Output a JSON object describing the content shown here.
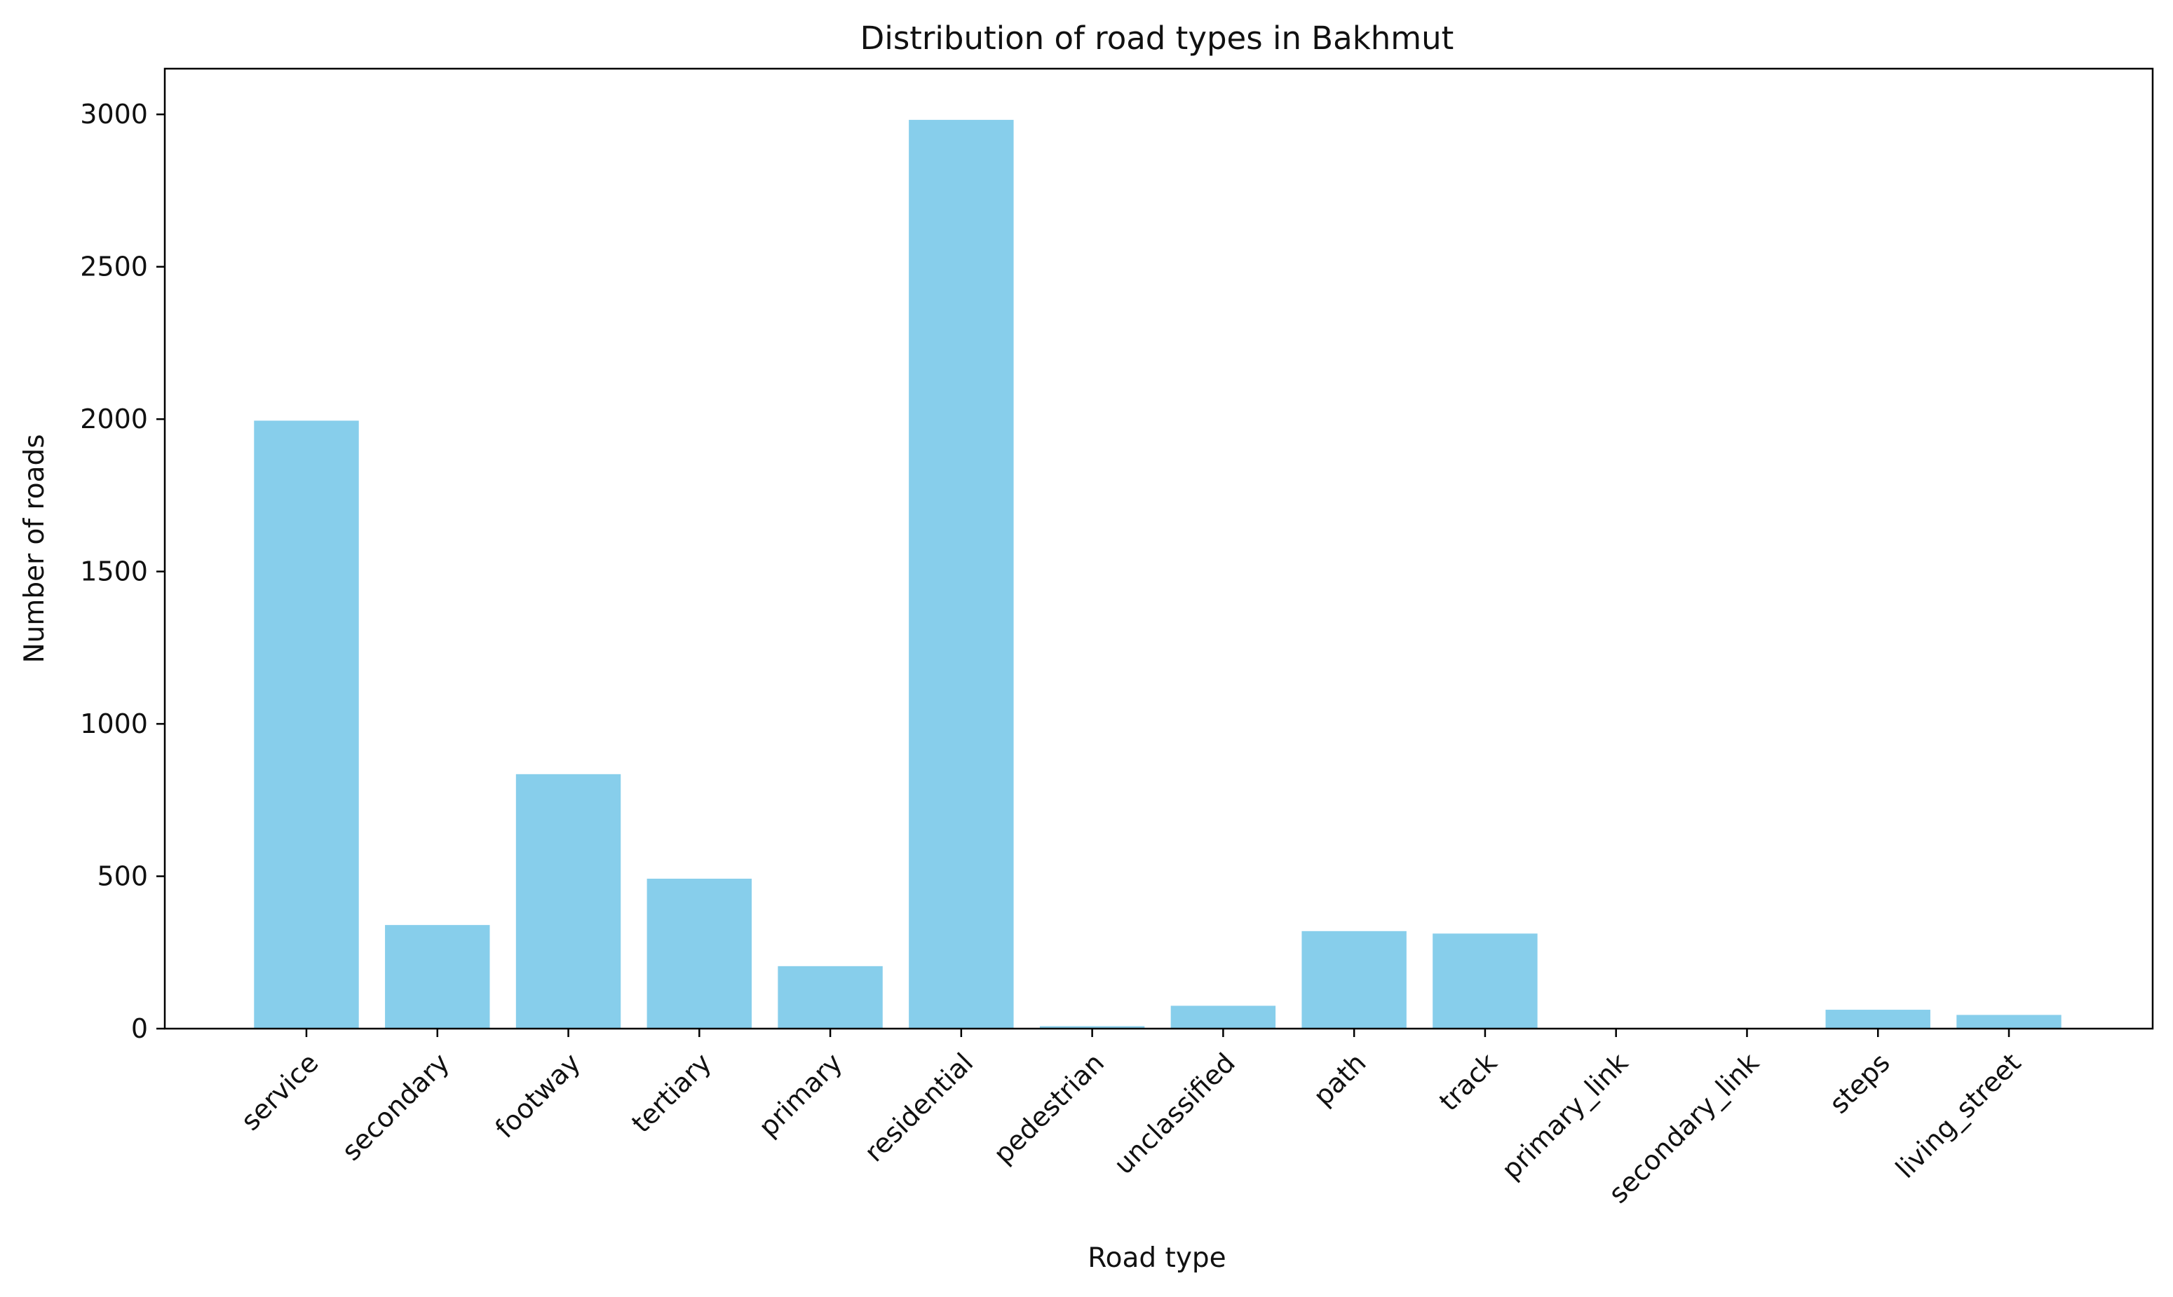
{
  "chart_data": {
    "type": "bar",
    "title": "Distribution of road types in Bakhmut",
    "xlabel": "Road type",
    "ylabel": "Number of roads",
    "categories": [
      "service",
      "secondary",
      "footway",
      "tertiary",
      "primary",
      "residential",
      "pedestrian",
      "unclassified",
      "path",
      "track",
      "primary_link",
      "secondary_link",
      "steps",
      "living_street"
    ],
    "values": [
      1995,
      340,
      835,
      492,
      205,
      2982,
      8,
      75,
      320,
      312,
      2,
      1,
      62,
      45
    ],
    "ylim": [
      0,
      3150
    ],
    "yticks": [
      0,
      500,
      1000,
      1500,
      2000,
      2500,
      3000
    ],
    "bar_color": "#87CEEB",
    "grid": false,
    "legend": "none"
  }
}
